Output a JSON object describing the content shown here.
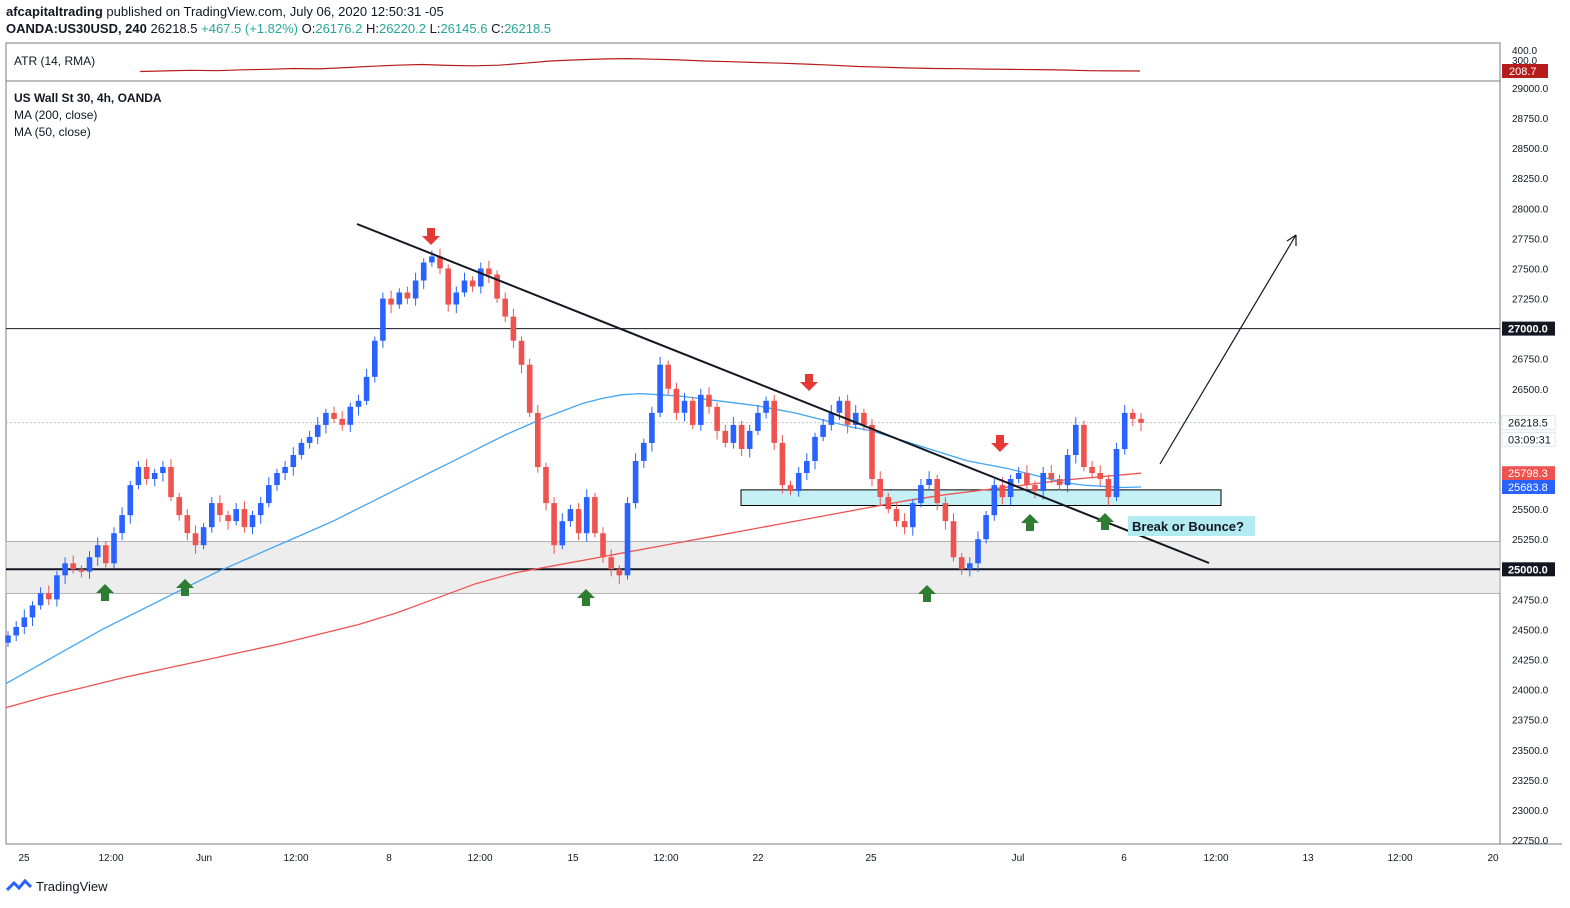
{
  "header": {
    "author": "afcapitaltrading",
    "published": "published on TradingView.com, July 06, 2020 12:50:31 -05",
    "symbol": "OANDA:US30USD, 240",
    "price": "26218.5",
    "change": "+467.5 (+1.82%)",
    "o_label": "O:",
    "o": "26176.2",
    "h_label": "H:",
    "h": "26220.2",
    "l_label": "L:",
    "l": "26145.6",
    "c_label": "C:",
    "c": "26218.5"
  },
  "legend": {
    "atr": "ATR (14, RMA)",
    "series": "US Wall St 30, 4h, OANDA",
    "ma200": "MA (200, close)",
    "ma50": "MA (50, close)"
  },
  "footer": {
    "brand": "TradingView"
  },
  "colors": {
    "up": "#2962ff",
    "down": "#ef5350",
    "ma50": "#42a5f5",
    "ma200": "#ef5350",
    "atr": "#b71c1c",
    "zone": "#e6e6e6",
    "box": "#b2ebf2",
    "arrow_up": "#2e7d32",
    "arrow_down": "#e53935"
  },
  "chart_data": [
    {
      "type": "line",
      "title": "ATR (14, RMA)",
      "y_ticks": [
        "400.0",
        "300.0"
      ],
      "last_value_label": "208.7",
      "ylim": [
        150,
        400
      ],
      "values": [
        205,
        210,
        215,
        212,
        220,
        225,
        232,
        228,
        240,
        252,
        262,
        268,
        260,
        256,
        262,
        280,
        300,
        310,
        318,
        322,
        316,
        310,
        300,
        294,
        286,
        280,
        272,
        262,
        250,
        244,
        236,
        232,
        230,
        226,
        224,
        222,
        218,
        212,
        210,
        208.7
      ]
    },
    {
      "type": "candlestick",
      "title": "US Wall St 30, 4h, OANDA",
      "x_ticks": [
        "25",
        "12:00",
        "Jun",
        "12:00",
        "8",
        "12:00",
        "15",
        "12:00",
        "22",
        "25",
        "Jul",
        "6",
        "12:00",
        "13",
        "12:00",
        "20"
      ],
      "y_ticks": [
        "29000.0",
        "28750.0",
        "28500.0",
        "28250.0",
        "28000.0",
        "27750.0",
        "27500.0",
        "27250.0",
        "26750.0",
        "26500.0",
        "25500.0",
        "25250.0",
        "24750.0",
        "24500.0",
        "24250.0",
        "24000.0",
        "23750.0",
        "23500.0",
        "23250.0",
        "23000.0",
        "22750.0"
      ],
      "ylim": [
        22700,
        29100
      ],
      "price_labels": [
        {
          "text": "27000.0",
          "value": 27000,
          "kind": "level"
        },
        {
          "text": "26218.5",
          "value": 26218.5,
          "kind": "last"
        },
        {
          "text": "03:09:31",
          "value": 26080,
          "kind": "timer"
        },
        {
          "text": "25798.3",
          "value": 25798.3,
          "kind": "ma200"
        },
        {
          "text": "25683.8",
          "value": 25683.8,
          "kind": "ma50"
        },
        {
          "text": "25000.0",
          "value": 25000,
          "kind": "level"
        }
      ],
      "candles_close": [
        24450,
        24520,
        24600,
        24700,
        24800,
        24750,
        24950,
        25050,
        25000,
        24980,
        25100,
        25200,
        25050,
        25300,
        25450,
        25700,
        25850,
        25750,
        25800,
        25850,
        25600,
        25450,
        25300,
        25200,
        25350,
        25550,
        25450,
        25400,
        25500,
        25350,
        25450,
        25550,
        25700,
        25800,
        25850,
        25950,
        26050,
        26100,
        26200,
        26300,
        26250,
        26200,
        26350,
        26400,
        26600,
        26900,
        27250,
        27200,
        27300,
        27250,
        27400,
        27550,
        27600,
        27500,
        27200,
        27300,
        27400,
        27350,
        27500,
        27450,
        27250,
        27100,
        26900,
        26700,
        26300,
        25850,
        25550,
        25200,
        25400,
        25500,
        25300,
        25600,
        25300,
        25100,
        25000,
        24950,
        25550,
        25900,
        26050,
        26300,
        26700,
        26500,
        26300,
        26400,
        26200,
        26450,
        26350,
        26150,
        26050,
        26200,
        26000,
        26150,
        26300,
        26400,
        26050,
        25700,
        25650,
        25800,
        25900,
        26100,
        26200,
        26300,
        26400,
        26200,
        26300,
        26200,
        25750,
        25600,
        25500,
        25400,
        25350,
        25550,
        25700,
        25750,
        25550,
        25400,
        25100,
        25000,
        25050,
        25250,
        25450,
        25700,
        25600,
        25750,
        25800,
        25700,
        25650,
        25800,
        25750,
        25700,
        25950,
        26200,
        25850,
        25800,
        25750,
        25600,
        26000,
        26300,
        26250,
        26218.5
      ],
      "ma50": [
        24050,
        24140,
        24230,
        24320,
        24410,
        24500,
        24580,
        24660,
        24740,
        24820,
        24900,
        24980,
        25050,
        25120,
        25190,
        25260,
        25330,
        25400,
        25480,
        25560,
        25640,
        25720,
        25800,
        25880,
        25960,
        26040,
        26120,
        26190,
        26260,
        26320,
        26380,
        26420,
        26450,
        26460,
        26450,
        26440,
        26420,
        26400,
        26380,
        26360,
        26330,
        26300,
        26260,
        26220,
        26180,
        26150,
        26100,
        26050,
        26000,
        25950,
        25900,
        25870,
        25840,
        25800,
        25760,
        25720,
        25700,
        25690,
        25680,
        25683.8
      ],
      "ma200": [
        23850,
        23940,
        24020,
        24100,
        24170,
        24240,
        24310,
        24380,
        24460,
        24540,
        24640,
        24760,
        24880,
        24970,
        25030,
        25090,
        25150,
        25210,
        25270,
        25330,
        25390,
        25450,
        25510,
        25570,
        25620,
        25660,
        25700,
        25740,
        25770,
        25798.3
      ],
      "annotations": [
        {
          "type": "text_box",
          "text": "Break or Bounce?",
          "value": 25480
        },
        {
          "type": "zone",
          "from": 24800,
          "to": 25230
        },
        {
          "type": "zone",
          "from": 25530,
          "to": 25660
        }
      ]
    }
  ]
}
